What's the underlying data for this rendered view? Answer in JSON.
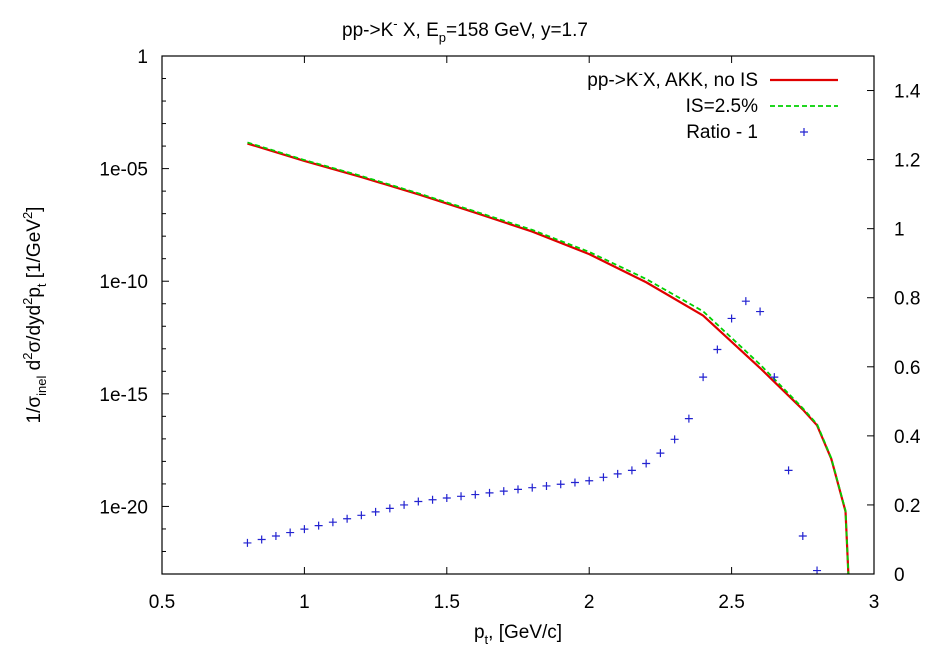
{
  "chart_data": {
    "type": "line",
    "title": "pp->K⁻ X, E_p=158 GeV, y=1.7",
    "xlabel": "p_t, [GeV/c]",
    "ylabel": "1/σ_inel d²σ/dyd²p_t [1/GeV²]",
    "xlim": [
      0.5,
      3.0
    ],
    "ylim_left_log10": [
      -23,
      0
    ],
    "ylim_right": [
      0,
      1.5
    ],
    "y_scale_left": "log",
    "grid": false,
    "legend_position": "top-right",
    "x_ticks": [
      0.5,
      1,
      1.5,
      2,
      2.5,
      3
    ],
    "x_tick_labels": [
      "0.5",
      "1",
      "1.5",
      "2",
      "2.5",
      "3"
    ],
    "y_left_ticks": [
      {
        "value": 1,
        "label": "1"
      },
      {
        "value": 1e-05,
        "label": "1e-05"
      },
      {
        "value": 1e-10,
        "label": "1e-10"
      },
      {
        "value": 1e-15,
        "label": "1e-15"
      },
      {
        "value": 1e-20,
        "label": "1e-20"
      }
    ],
    "y_right_ticks": [
      {
        "value": 0,
        "label": "0"
      },
      {
        "value": 0.2,
        "label": "0.2"
      },
      {
        "value": 0.4,
        "label": "0.4"
      },
      {
        "value": 0.6,
        "label": "0.6"
      },
      {
        "value": 0.8,
        "label": "0.8"
      },
      {
        "value": 1,
        "label": "1"
      },
      {
        "value": 1.2,
        "label": "1.2"
      },
      {
        "value": 1.4,
        "label": "1.4"
      }
    ],
    "series": [
      {
        "name": "pp->K⁻X, AKK, no IS",
        "axis": "left",
        "style": "line",
        "color": "#e00000",
        "x": [
          0.8,
          1.0,
          1.2,
          1.4,
          1.6,
          1.8,
          2.0,
          2.2,
          2.4,
          2.6,
          2.75,
          2.8,
          2.85,
          2.9,
          2.91
        ],
        "y": [
          0.00013,
          2.2e-05,
          4.2e-06,
          7.2e-07,
          1.1e-07,
          1.6e-08,
          1.6e-09,
          9e-11,
          3e-12,
          1.4e-14,
          2e-16,
          4e-17,
          1.3e-18,
          6e-21,
          1e-23
        ]
      },
      {
        "name": "IS=2.5%",
        "axis": "left",
        "style": "dashed",
        "color": "#00d000",
        "x": [
          0.8,
          1.0,
          1.2,
          1.4,
          1.6,
          1.8,
          2.0,
          2.2,
          2.4,
          2.6,
          2.75,
          2.8,
          2.85,
          2.9,
          2.91
        ],
        "y": [
          0.000145,
          2.4e-05,
          4.7e-06,
          8e-07,
          1.25e-07,
          1.9e-08,
          2e-09,
          1.25e-10,
          4.6e-12,
          2e-14,
          2.3e-16,
          4.5e-17,
          1.4e-18,
          6.5e-21,
          1e-23
        ]
      },
      {
        "name": "Ratio - 1",
        "axis": "right",
        "style": "points",
        "color": "#2222d0",
        "x": [
          0.8,
          0.85,
          0.9,
          0.95,
          1.0,
          1.05,
          1.1,
          1.15,
          1.2,
          1.25,
          1.3,
          1.35,
          1.4,
          1.45,
          1.5,
          1.55,
          1.6,
          1.65,
          1.7,
          1.75,
          1.8,
          1.85,
          1.9,
          1.95,
          2.0,
          2.05,
          2.1,
          2.15,
          2.2,
          2.25,
          2.3,
          2.35,
          2.4,
          2.45,
          2.5,
          2.55,
          2.6,
          2.65,
          2.7,
          2.75,
          2.8
        ],
        "y": [
          0.09,
          0.1,
          0.11,
          0.12,
          0.13,
          0.14,
          0.15,
          0.16,
          0.17,
          0.18,
          0.19,
          0.2,
          0.21,
          0.215,
          0.22,
          0.225,
          0.23,
          0.235,
          0.24,
          0.245,
          0.25,
          0.255,
          0.26,
          0.265,
          0.27,
          0.28,
          0.29,
          0.3,
          0.32,
          0.35,
          0.39,
          0.45,
          0.57,
          0.65,
          0.74,
          0.79,
          0.76,
          0.57,
          0.3,
          0.11,
          0.01
        ]
      }
    ]
  }
}
